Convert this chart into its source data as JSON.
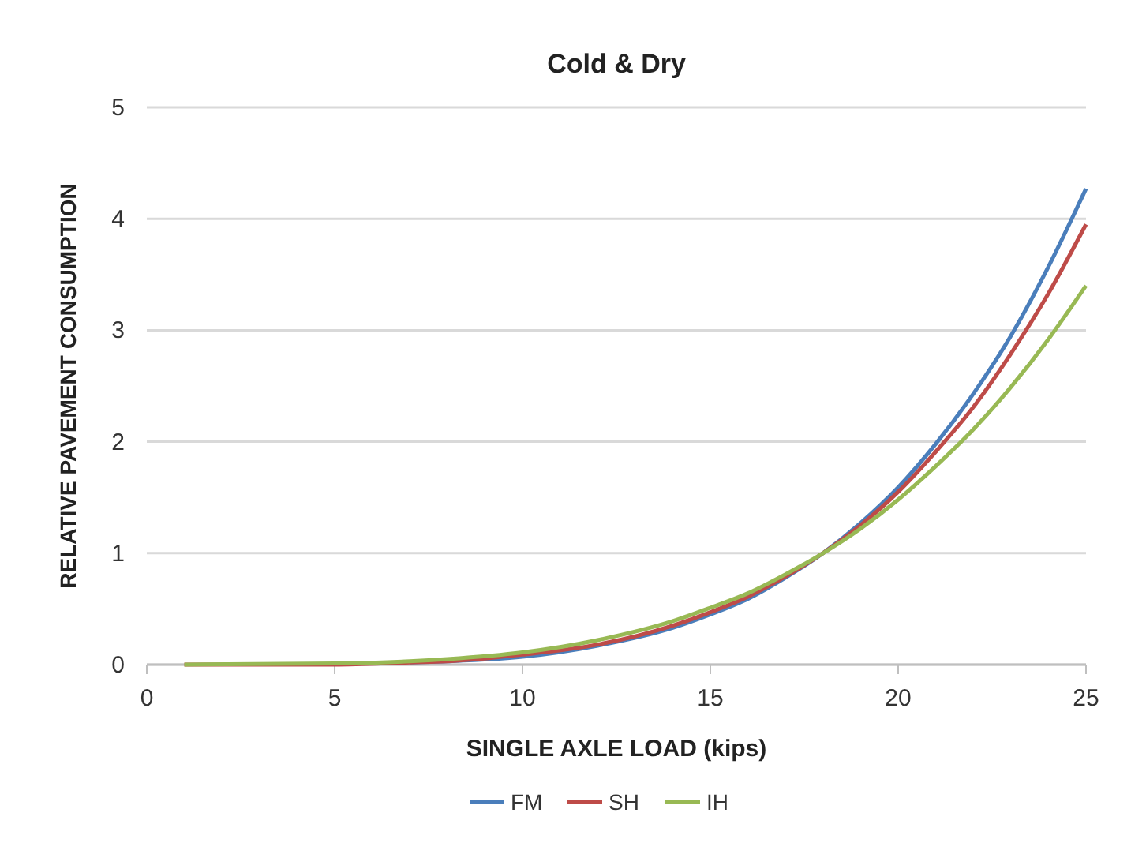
{
  "chart_data": {
    "type": "line",
    "title": "Cold & Dry",
    "xlabel": "SINGLE AXLE LOAD (kips)",
    "ylabel": "RELATIVE PAVEMENT CONSUMPTION",
    "x": [
      1,
      5,
      7,
      8,
      10,
      12,
      14,
      15,
      16,
      17,
      18,
      19,
      20,
      21,
      22,
      23,
      24,
      25
    ],
    "series": [
      {
        "name": "FM",
        "color": "#4a7ebb",
        "values": [
          null,
          null,
          0.02,
          0.03,
          0.07,
          0.17,
          0.33,
          0.45,
          0.59,
          0.78,
          1,
          1.27,
          1.59,
          1.98,
          2.43,
          2.95,
          3.57,
          4.27
        ]
      },
      {
        "name": "SH",
        "color": "#be4b48",
        "values": [
          0,
          0,
          0.02,
          0.03,
          0.09,
          0.18,
          0.35,
          0.47,
          0.61,
          0.79,
          1,
          1.25,
          1.55,
          1.91,
          2.31,
          2.79,
          3.33,
          3.95
        ]
      },
      {
        "name": "IH",
        "color": "#98b954",
        "values": [
          0,
          0.01,
          0.03,
          0.05,
          0.11,
          0.22,
          0.39,
          0.51,
          0.64,
          0.81,
          1,
          1.22,
          1.48,
          1.78,
          2.11,
          2.49,
          2.92,
          3.4
        ]
      }
    ],
    "xlim": [
      0,
      25
    ],
    "xticks": [
      0,
      5,
      10,
      15,
      20,
      25
    ],
    "ylim": [
      0,
      5
    ],
    "yticks": [
      0,
      1,
      2,
      3,
      4,
      5
    ],
    "grid": "y",
    "legend": "bottom",
    "marker": "none",
    "line_style": "solid"
  }
}
